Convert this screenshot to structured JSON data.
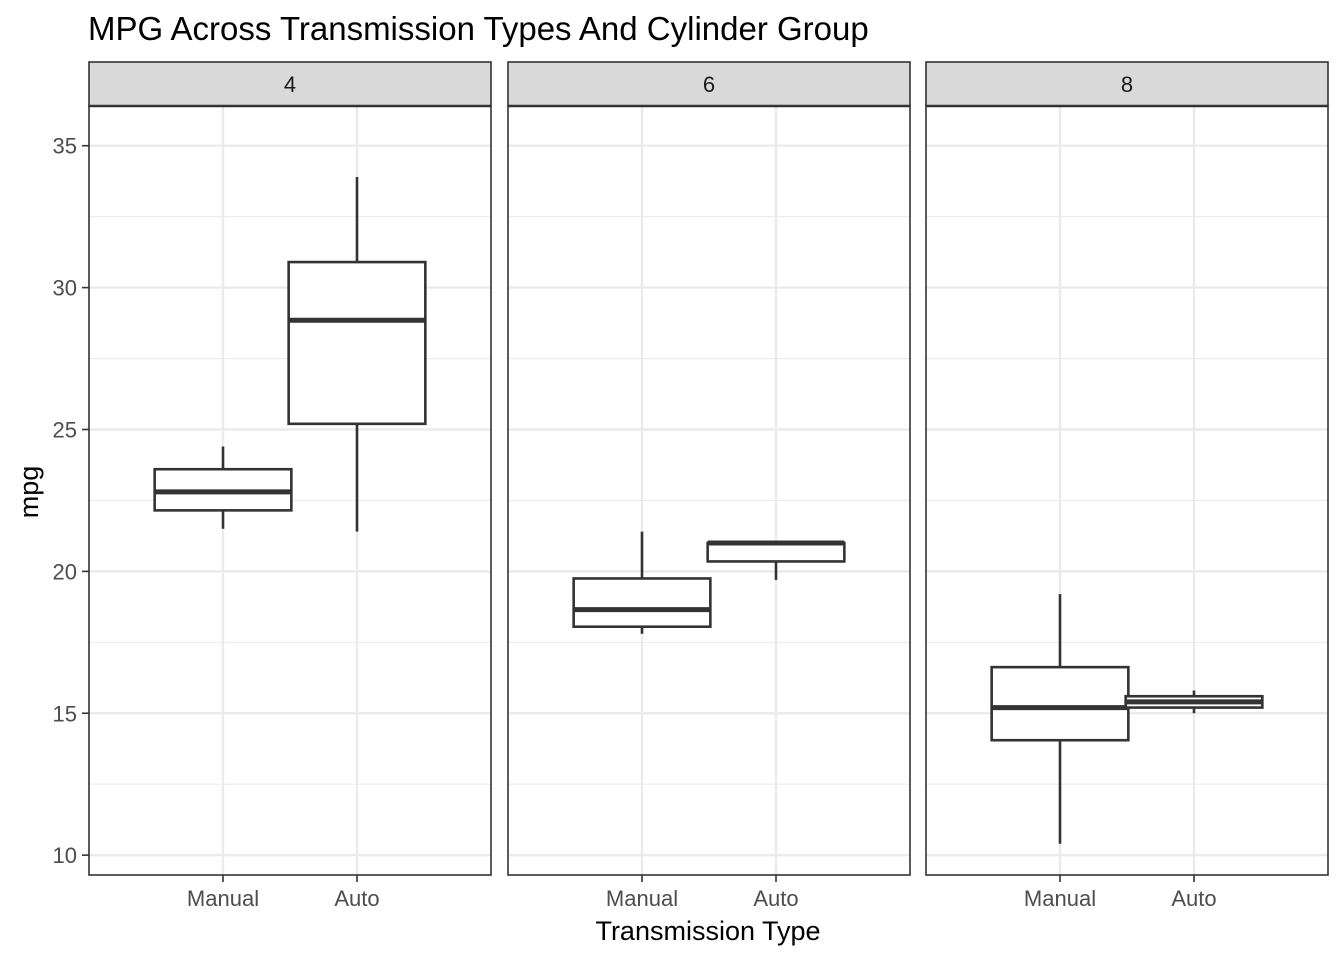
{
  "chart_data": {
    "type": "boxplot",
    "title": "MPG Across Transmission Types And Cylinder Group",
    "xlabel": "Transmission Type",
    "ylabel": "mpg",
    "ylim": [
      9.3,
      36.4
    ],
    "yticks": [
      10,
      15,
      20,
      25,
      30,
      35
    ],
    "categories": [
      "Manual",
      "Auto"
    ],
    "grid": true,
    "facet_variable": "cyl",
    "colors": {
      "box_stroke": "#333333",
      "strip_fill": "#d9d9d9",
      "grid": "#ebebeb",
      "panel_border": "#333333"
    },
    "facets": [
      {
        "label": "4",
        "boxes": [
          {
            "category": "Manual",
            "min": 21.5,
            "q1": 22.15,
            "median": 22.8,
            "q3": 23.6,
            "max": 24.4
          },
          {
            "category": "Auto",
            "min": 21.4,
            "q1": 25.2,
            "median": 28.85,
            "q3": 30.9,
            "max": 33.9
          }
        ]
      },
      {
        "label": "6",
        "boxes": [
          {
            "category": "Manual",
            "min": 17.8,
            "q1": 18.05,
            "median": 18.65,
            "q3": 19.75,
            "max": 21.4
          },
          {
            "category": "Auto",
            "min": 19.7,
            "q1": 20.35,
            "median": 21.0,
            "q3": 21.0,
            "max": 21.0
          }
        ]
      },
      {
        "label": "8",
        "boxes": [
          {
            "category": "Manual",
            "min": 10.4,
            "q1": 14.05,
            "median": 15.2,
            "q3": 16.625,
            "max": 19.2
          },
          {
            "category": "Auto",
            "min": 15.0,
            "q1": 15.2,
            "median": 15.4,
            "q3": 15.6,
            "max": 15.8
          }
        ]
      }
    ]
  }
}
